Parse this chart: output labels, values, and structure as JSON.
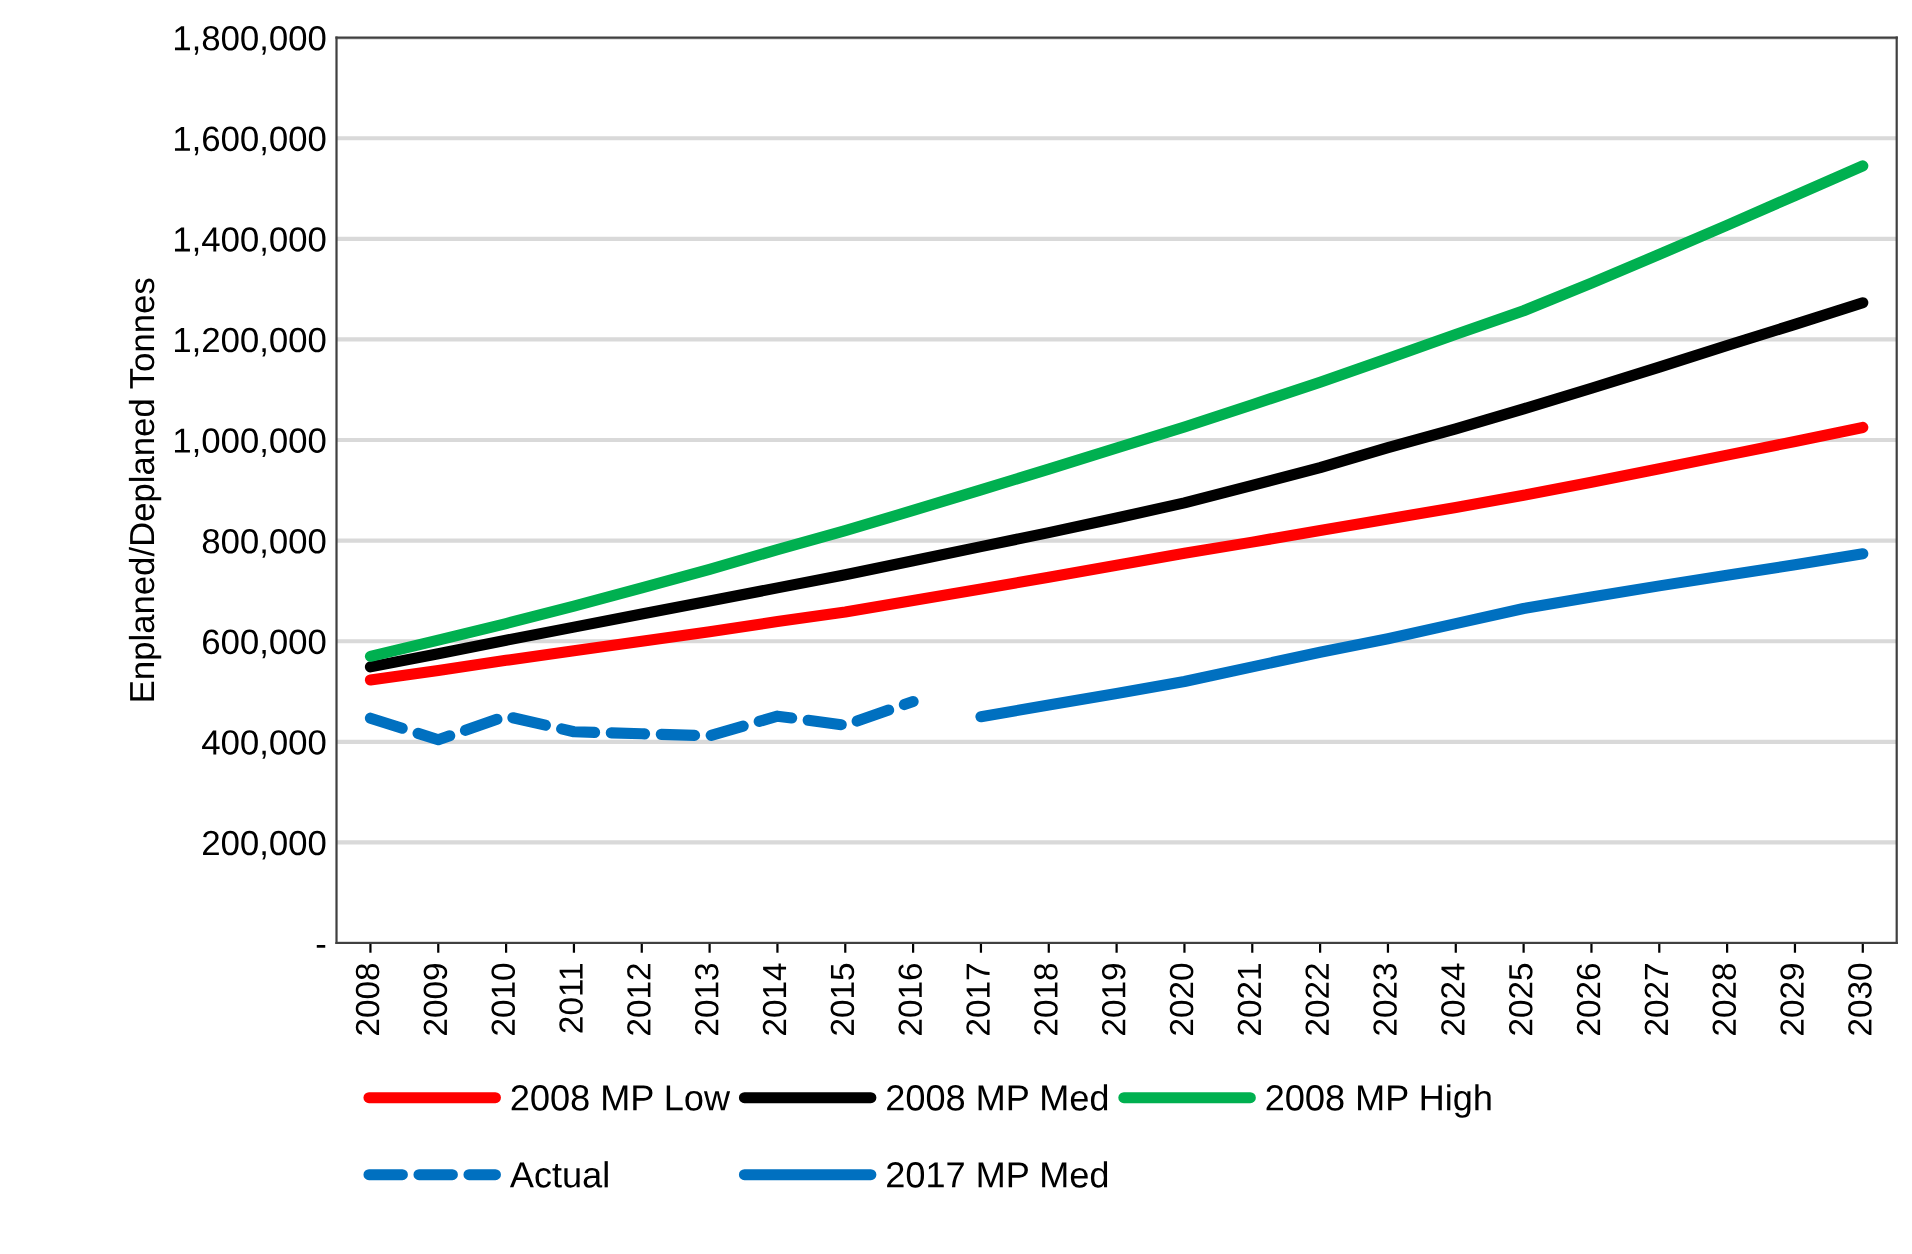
{
  "chart_data": {
    "type": "line",
    "ylabel": "Enplaned/Deplaned Tonnes",
    "categories": [
      "2008",
      "2009",
      "2010",
      "2011",
      "2012",
      "2013",
      "2014",
      "2015",
      "2016",
      "2017",
      "2018",
      "2019",
      "2020",
      "2021",
      "2022",
      "2023",
      "2024",
      "2025",
      "2026",
      "2027",
      "2028",
      "2029",
      "2030"
    ],
    "series": [
      {
        "name": "2008 MP Low",
        "color": "#ff0000",
        "values": [
          523000,
          542000,
          562000,
          581000,
          600000,
          619000,
          639000,
          658000,
          681000,
          704000,
          727000,
          751000,
          775000,
          797000,
          820000,
          843000,
          866000,
          890000,
          916000,
          943000,
          970000,
          997000,
          1025000
        ]
      },
      {
        "name": "2008 MP Med",
        "color": "#000000",
        "values": [
          549000,
          575000,
          602000,
          628000,
          654000,
          680000,
          706000,
          732000,
          760000,
          788000,
          816000,
          845000,
          875000,
          910000,
          945000,
          985000,
          1022000,
          1062000,
          1103000,
          1145000,
          1188000,
          1230000,
          1273000
        ]
      },
      {
        "name": "2008 MP High",
        "color": "#00b050",
        "values": [
          570000,
          602000,
          635000,
          670000,
          706000,
          743000,
          782000,
          820000,
          860000,
          901000,
          942000,
          984000,
          1026000,
          1070000,
          1115000,
          1162000,
          1210000,
          1257000,
          1312000,
          1369000,
          1427000,
          1486000,
          1545000
        ]
      },
      {
        "name": "Actual",
        "color": "#0070c0",
        "line_style": "dashed",
        "values": [
          447000,
          404000,
          451000,
          420000,
          416000,
          412000,
          451000,
          433000,
          480000,
          null,
          null,
          null,
          null,
          null,
          null,
          null,
          null,
          null,
          null,
          null,
          null,
          null,
          null
        ]
      },
      {
        "name": "2017 MP Med",
        "color": "#0070c0",
        "values": [
          null,
          null,
          null,
          null,
          null,
          null,
          null,
          null,
          null,
          450000,
          473000,
          496000,
          520000,
          549000,
          578000,
          605000,
          635000,
          665000,
          688000,
          710000,
          731000,
          752000,
          774000
        ]
      }
    ],
    "ylim": [
      0,
      1800000
    ],
    "yticks": [
      {
        "value": 0,
        "label": "-"
      },
      {
        "value": 200000,
        "label": "200,000"
      },
      {
        "value": 400000,
        "label": "400,000"
      },
      {
        "value": 600000,
        "label": "600,000"
      },
      {
        "value": 800000,
        "label": "800,000"
      },
      {
        "value": 1000000,
        "label": "1,000,000"
      },
      {
        "value": 1200000,
        "label": "1,200,000"
      },
      {
        "value": 1400000,
        "label": "1,400,000"
      },
      {
        "value": 1600000,
        "label": "1,600,000"
      },
      {
        "value": 1800000,
        "label": "1,800,000"
      }
    ],
    "grid": "y",
    "legend": "bottom",
    "marker": "none",
    "line_style": "solid"
  }
}
